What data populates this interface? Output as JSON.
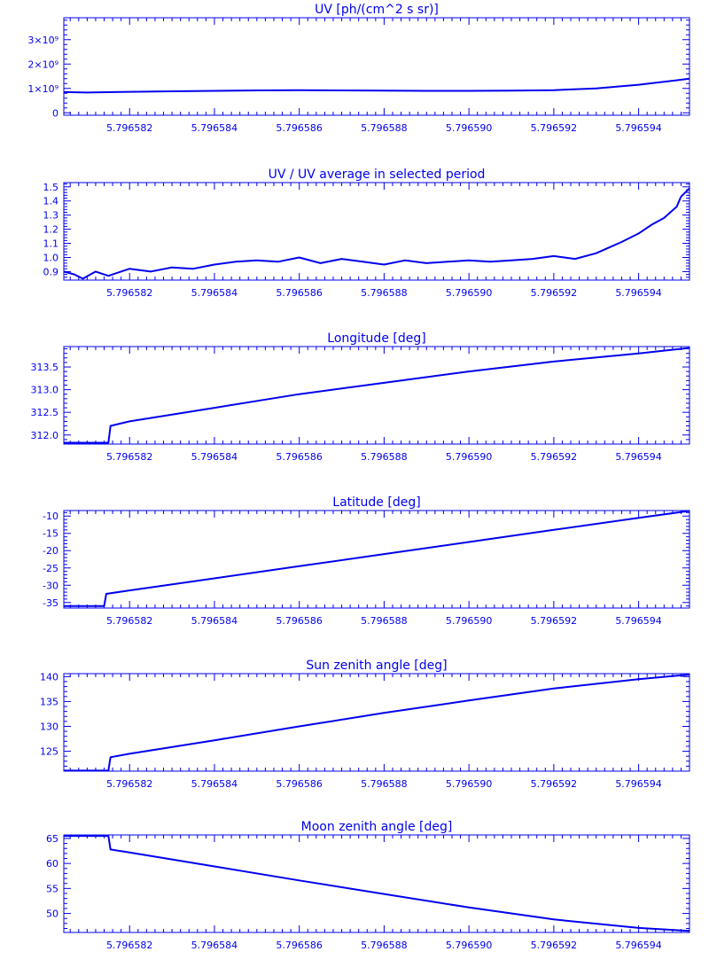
{
  "chart_data": [
    {
      "type": "line",
      "title": "UV [ph/(cm^2 s sr)]",
      "xlim": [
        5.79658045,
        5.7965952
      ],
      "ylim": [
        -100000000,
        3900000000
      ],
      "x_ticks": [
        {
          "value": 5.796582,
          "label": "5.796582"
        },
        {
          "value": 5.796584,
          "label": "5.796584"
        },
        {
          "value": 5.796586,
          "label": "5.796586"
        },
        {
          "value": 5.796588,
          "label": "5.796588"
        },
        {
          "value": 5.79659,
          "label": "5.796590"
        },
        {
          "value": 5.796592,
          "label": "5.796592"
        },
        {
          "value": 5.796594,
          "label": "5.796594"
        }
      ],
      "y_ticks": [
        {
          "value": 0,
          "label": "0"
        },
        {
          "value": 1000000000,
          "label": "1×10⁹"
        },
        {
          "value": 2000000000,
          "label": "2×10⁹"
        },
        {
          "value": 3000000000,
          "label": "3×10⁹"
        }
      ],
      "series": [
        {
          "x": [
            5.79658045,
            5.796581,
            5.796582,
            5.796583,
            5.796584,
            5.796585,
            5.796586,
            5.796587,
            5.796588,
            5.796589,
            5.79659,
            5.796591,
            5.796592,
            5.796593,
            5.796594,
            5.7965952
          ],
          "y": [
            850000000,
            830000000,
            860000000,
            880000000,
            900000000,
            920000000,
            930000000,
            920000000,
            910000000,
            900000000,
            900000000,
            910000000,
            930000000,
            1000000000,
            1150000000,
            1400000000
          ]
        }
      ]
    },
    {
      "type": "line",
      "title": "UV / UV average in selected period",
      "xlim": [
        5.79658045,
        5.7965952
      ],
      "ylim": [
        0.84,
        1.53
      ],
      "x_ticks": [
        {
          "value": 5.796582,
          "label": "5.796582"
        },
        {
          "value": 5.796584,
          "label": "5.796584"
        },
        {
          "value": 5.796586,
          "label": "5.796586"
        },
        {
          "value": 5.796588,
          "label": "5.796588"
        },
        {
          "value": 5.79659,
          "label": "5.796590"
        },
        {
          "value": 5.796592,
          "label": "5.796592"
        },
        {
          "value": 5.796594,
          "label": "5.796594"
        }
      ],
      "y_ticks": [
        {
          "value": 0.9,
          "label": "0.9"
        },
        {
          "value": 1.0,
          "label": "1.0"
        },
        {
          "value": 1.1,
          "label": "1.1"
        },
        {
          "value": 1.2,
          "label": "1.2"
        },
        {
          "value": 1.3,
          "label": "1.3"
        },
        {
          "value": 1.4,
          "label": "1.4"
        },
        {
          "value": 1.5,
          "label": "1.5"
        }
      ],
      "series": [
        {
          "x": [
            5.79658045,
            5.7965807,
            5.7965809,
            5.7965812,
            5.7965815,
            5.796582,
            5.7965825,
            5.796583,
            5.7965835,
            5.796584,
            5.7965845,
            5.796585,
            5.7965855,
            5.796586,
            5.7965865,
            5.796587,
            5.7965875,
            5.796588,
            5.7965885,
            5.796589,
            5.7965895,
            5.79659,
            5.7965905,
            5.796591,
            5.7965915,
            5.796592,
            5.7965925,
            5.796593,
            5.7965933,
            5.7965936,
            5.796594,
            5.7965943,
            5.7965946,
            5.7965949,
            5.796595,
            5.7965952
          ],
          "y": [
            0.9,
            0.88,
            0.85,
            0.9,
            0.87,
            0.92,
            0.9,
            0.93,
            0.92,
            0.95,
            0.97,
            0.98,
            0.97,
            1.0,
            0.96,
            0.99,
            0.97,
            0.95,
            0.98,
            0.96,
            0.97,
            0.98,
            0.97,
            0.98,
            0.99,
            1.01,
            0.99,
            1.03,
            1.07,
            1.11,
            1.17,
            1.23,
            1.28,
            1.36,
            1.43,
            1.49
          ]
        }
      ]
    },
    {
      "type": "line",
      "title": "Longitude [deg]",
      "xlim": [
        5.79658045,
        5.7965952
      ],
      "ylim": [
        311.8,
        313.95
      ],
      "x_ticks": [
        {
          "value": 5.796582,
          "label": "5.796582"
        },
        {
          "value": 5.796584,
          "label": "5.796584"
        },
        {
          "value": 5.796586,
          "label": "5.796586"
        },
        {
          "value": 5.796588,
          "label": "5.796588"
        },
        {
          "value": 5.79659,
          "label": "5.796590"
        },
        {
          "value": 5.796592,
          "label": "5.796592"
        },
        {
          "value": 5.796594,
          "label": "5.796594"
        }
      ],
      "y_ticks": [
        {
          "value": 312.0,
          "label": "312.0"
        },
        {
          "value": 312.5,
          "label": "312.5"
        },
        {
          "value": 313.0,
          "label": "313.0"
        },
        {
          "value": 313.5,
          "label": "313.5"
        }
      ],
      "series": [
        {
          "x": [
            5.79658045,
            5.7965815,
            5.79658155,
            5.796582,
            5.796584,
            5.796586,
            5.796588,
            5.79659,
            5.796592,
            5.796594,
            5.796595,
            5.7965952
          ],
          "y": [
            311.83,
            311.83,
            312.2,
            312.3,
            312.6,
            312.9,
            313.15,
            313.4,
            313.62,
            313.8,
            313.9,
            313.92
          ]
        }
      ]
    },
    {
      "type": "line",
      "title": "Latitude [deg]",
      "xlim": [
        5.79658045,
        5.7965952
      ],
      "ylim": [
        -36.6,
        -8.4
      ],
      "x_ticks": [
        {
          "value": 5.796582,
          "label": "5.796582"
        },
        {
          "value": 5.796584,
          "label": "5.796584"
        },
        {
          "value": 5.796586,
          "label": "5.796586"
        },
        {
          "value": 5.796588,
          "label": "5.796588"
        },
        {
          "value": 5.79659,
          "label": "5.796590"
        },
        {
          "value": 5.796592,
          "label": "5.796592"
        },
        {
          "value": 5.796594,
          "label": "5.796594"
        }
      ],
      "y_ticks": [
        {
          "value": -35,
          "label": "-35"
        },
        {
          "value": -30,
          "label": "-30"
        },
        {
          "value": -25,
          "label": "-25"
        },
        {
          "value": -20,
          "label": "-20"
        },
        {
          "value": -15,
          "label": "-15"
        },
        {
          "value": -10,
          "label": "-10"
        }
      ],
      "series": [
        {
          "x": [
            5.79658045,
            5.7965814,
            5.79658145,
            5.796582,
            5.796584,
            5.796586,
            5.796588,
            5.79659,
            5.796592,
            5.796594,
            5.7965952
          ],
          "y": [
            -36.0,
            -36.0,
            -32.5,
            -31.5,
            -28.0,
            -24.5,
            -21.0,
            -17.5,
            -14.0,
            -10.5,
            -8.5
          ]
        }
      ]
    },
    {
      "type": "line",
      "title": "Sun zenith angle [deg]",
      "xlim": [
        5.79658045,
        5.7965952
      ],
      "ylim": [
        121.0,
        140.6
      ],
      "x_ticks": [
        {
          "value": 5.796582,
          "label": "5.796582"
        },
        {
          "value": 5.796584,
          "label": "5.796584"
        },
        {
          "value": 5.796586,
          "label": "5.796586"
        },
        {
          "value": 5.796588,
          "label": "5.796588"
        },
        {
          "value": 5.79659,
          "label": "5.796590"
        },
        {
          "value": 5.796592,
          "label": "5.796592"
        },
        {
          "value": 5.796594,
          "label": "5.796594"
        }
      ],
      "y_ticks": [
        {
          "value": 125,
          "label": "125"
        },
        {
          "value": 130,
          "label": "130"
        },
        {
          "value": 135,
          "label": "135"
        },
        {
          "value": 140,
          "label": "140"
        }
      ],
      "series": [
        {
          "x": [
            5.79658045,
            5.7965815,
            5.79658155,
            5.796582,
            5.796584,
            5.796586,
            5.796588,
            5.79659,
            5.796592,
            5.796594,
            5.7965952
          ],
          "y": [
            121.1,
            121.1,
            123.8,
            124.5,
            127.2,
            130.0,
            132.7,
            135.2,
            137.6,
            139.5,
            140.4
          ]
        }
      ]
    },
    {
      "type": "line",
      "title": "Moon zenith angle [deg]",
      "xlim": [
        5.79658045,
        5.7965952
      ],
      "ylim": [
        46.2,
        65.7
      ],
      "x_ticks": [
        {
          "value": 5.796582,
          "label": "5.796582"
        },
        {
          "value": 5.796584,
          "label": "5.796584"
        },
        {
          "value": 5.796586,
          "label": "5.796586"
        },
        {
          "value": 5.796588,
          "label": "5.796588"
        },
        {
          "value": 5.79659,
          "label": "5.796590"
        },
        {
          "value": 5.796592,
          "label": "5.796592"
        },
        {
          "value": 5.796594,
          "label": "5.796594"
        }
      ],
      "y_ticks": [
        {
          "value": 50,
          "label": "50"
        },
        {
          "value": 55,
          "label": "55"
        },
        {
          "value": 60,
          "label": "60"
        },
        {
          "value": 65,
          "label": "65"
        }
      ],
      "series": [
        {
          "x": [
            5.79658045,
            5.7965815,
            5.79658155,
            5.796582,
            5.796584,
            5.796586,
            5.796588,
            5.79659,
            5.796592,
            5.796594,
            5.7965952
          ],
          "y": [
            65.5,
            65.5,
            62.8,
            62.2,
            59.4,
            56.6,
            53.9,
            51.2,
            48.8,
            47.1,
            46.5
          ]
        }
      ]
    }
  ]
}
